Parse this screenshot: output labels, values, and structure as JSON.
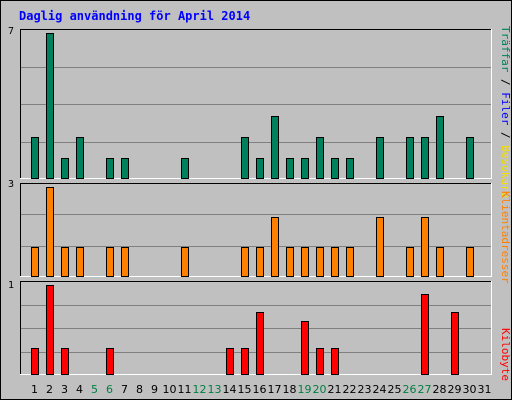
{
  "chart_data": {
    "type": "bar",
    "title": "Daglig användning för April 2014",
    "categories": [
      "1",
      "2",
      "3",
      "4",
      "5",
      "6",
      "7",
      "8",
      "9",
      "10",
      "11",
      "12",
      "13",
      "14",
      "15",
      "16",
      "17",
      "18",
      "19",
      "20",
      "21",
      "22",
      "23",
      "24",
      "25",
      "26",
      "27",
      "28",
      "29",
      "30",
      "31"
    ],
    "weekend_categories": [
      "5",
      "6",
      "12",
      "13",
      "19",
      "20",
      "26",
      "27"
    ],
    "legend_labels": {
      "traffar": "Träffar",
      "filer": "Filer",
      "besokare": "Besökare",
      "klientadresser": "Klientadresser",
      "kilobyte": "Kilobyte"
    },
    "series": [
      {
        "name": "Träffar",
        "panel": "top",
        "max_label": "7",
        "max": 7,
        "values": [
          2,
          7,
          1,
          2,
          0,
          1,
          1,
          0,
          0,
          0,
          1,
          0,
          0,
          0,
          2,
          1,
          3,
          1,
          1,
          2,
          1,
          1,
          0,
          2,
          0,
          2,
          2,
          3,
          0,
          2,
          0
        ]
      },
      {
        "name": "Filer",
        "panel": "top",
        "max": 7,
        "values": [
          2,
          7,
          1,
          2,
          0,
          1,
          1,
          0,
          0,
          0,
          1,
          0,
          0,
          0,
          2,
          1,
          3,
          1,
          1,
          2,
          1,
          1,
          0,
          2,
          0,
          2,
          2,
          3,
          0,
          2,
          0
        ]
      },
      {
        "name": "Klientadresser",
        "panel": "middle",
        "max_label": "3",
        "max": 3,
        "values": [
          1,
          3,
          1,
          1,
          0,
          1,
          1,
          0,
          0,
          0,
          1,
          0,
          0,
          0,
          1,
          1,
          2,
          1,
          1,
          1,
          1,
          1,
          0,
          2,
          0,
          1,
          2,
          1,
          0,
          1,
          0
        ]
      },
      {
        "name": "Kilobyte",
        "panel": "bottom",
        "max_label": "1",
        "max": 1,
        "values": [
          0.3,
          1.0,
          0.3,
          0,
          0,
          0.3,
          0,
          0,
          0,
          0,
          0,
          0,
          0,
          0.3,
          0.3,
          0.7,
          0,
          0,
          0.6,
          0.3,
          0.3,
          0,
          0,
          0,
          0,
          0,
          0.9,
          0,
          0.7,
          0,
          0
        ]
      }
    ],
    "colors": {
      "traffar": "#00805c",
      "filer": "#0000ff",
      "besokare": "#f5e000",
      "klientadresser": "#ff8000",
      "kilobyte": "#ff0000",
      "title": "#0000ff",
      "weekend_label": "#008040"
    }
  }
}
